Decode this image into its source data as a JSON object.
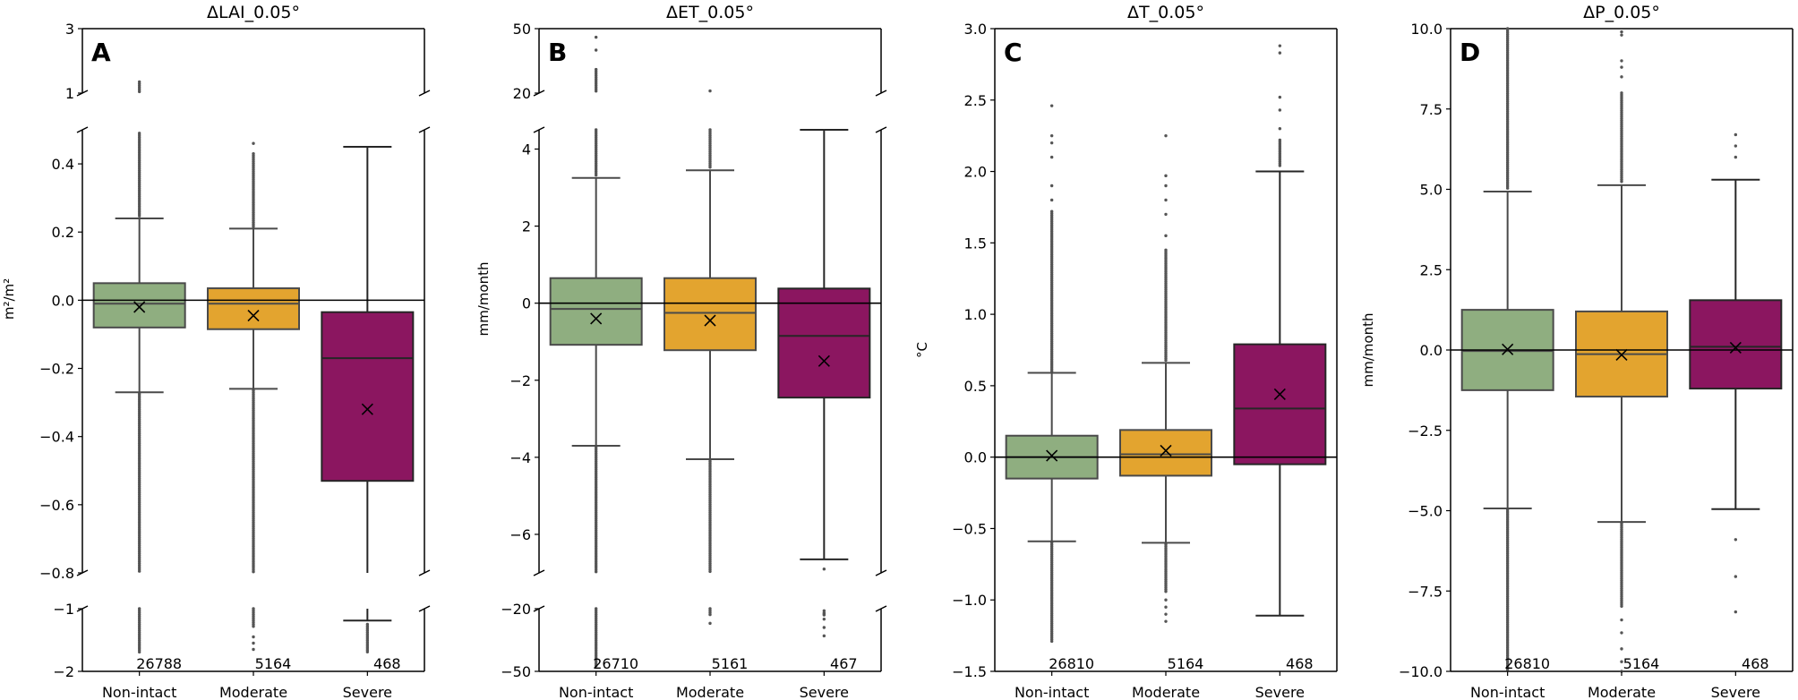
{
  "chart_data": [
    {
      "type": "box",
      "panel": "A",
      "title": "ΔLAI_0.05°",
      "ylabel": "m²/m²",
      "broken_axis": true,
      "segments": [
        [
          3,
          1
        ],
        [
          0.5,
          -0.8
        ],
        [
          -1,
          -2
        ]
      ],
      "yticks": [
        {
          "v": 3,
          "label": "3"
        },
        {
          "v": 1,
          "label": "1"
        },
        {
          "v": 0.4,
          "label": "0.4"
        },
        {
          "v": 0.2,
          "label": "0.2"
        },
        {
          "v": 0,
          "label": "0.0"
        },
        {
          "v": -0.2,
          "label": "−0.2"
        },
        {
          "v": -0.4,
          "label": "−0.4"
        },
        {
          "v": -0.6,
          "label": "−0.6"
        },
        {
          "v": -0.8,
          "label": "−0.8"
        },
        {
          "v": -1,
          "label": "−1"
        },
        {
          "v": -2,
          "label": "−2"
        }
      ],
      "categories": [
        "Non-intact",
        "Moderate",
        "Severe"
      ],
      "boxes": [
        {
          "n": "26788",
          "q1": -0.08,
          "median": -0.01,
          "q3": 0.05,
          "mean": -0.02,
          "whisker_low": -0.27,
          "whisker_high": 0.24,
          "outlier_ranges": [
            [
              0.245,
              0.49
            ],
            [
              1.02,
              1.35
            ],
            [
              -0.8,
              -0.275
            ],
            [
              -1.7,
              -1.0
            ]
          ],
          "outliers": []
        },
        {
          "n": "5164",
          "q1": -0.085,
          "median": -0.01,
          "q3": 0.035,
          "mean": -0.045,
          "whisker_low": -0.26,
          "whisker_high": 0.21,
          "outlier_ranges": [
            [
              0.215,
              0.43
            ],
            [
              -0.8,
              -0.265
            ],
            [
              -1.3,
              -1.0
            ]
          ],
          "outliers": [
            0.46,
            -1.45,
            -1.55,
            -1.65
          ]
        },
        {
          "n": "468",
          "q1": -0.53,
          "median": -0.17,
          "q3": -0.035,
          "mean": -0.32,
          "whisker_low": -1.19,
          "whisker_high": 0.45,
          "outlier_ranges": [
            [
              -1.7,
              -1.25
            ]
          ],
          "outliers": []
        }
      ]
    },
    {
      "type": "box",
      "panel": "B",
      "title": "ΔET_0.05°",
      "ylabel": "mm/month",
      "broken_axis": true,
      "segments": [
        [
          50,
          20
        ],
        [
          4.5,
          -7
        ],
        [
          -20,
          -50
        ]
      ],
      "yticks": [
        {
          "v": 50,
          "label": "50"
        },
        {
          "v": 20,
          "label": "20"
        },
        {
          "v": 4,
          "label": "4"
        },
        {
          "v": 2,
          "label": "2"
        },
        {
          "v": 0,
          "label": "0"
        },
        {
          "v": -2,
          "label": "−2"
        },
        {
          "v": -4,
          "label": "−4"
        },
        {
          "v": -6,
          "label": "−6"
        },
        {
          "v": -20,
          "label": "−20"
        },
        {
          "v": -50,
          "label": "−50"
        }
      ],
      "categories": [
        "Non-intact",
        "Moderate",
        "Severe"
      ],
      "boxes": [
        {
          "n": "26710",
          "q1": -1.08,
          "median": -0.15,
          "q3": 0.65,
          "mean": -0.4,
          "whisker_low": -3.7,
          "whisker_high": 3.25,
          "outlier_ranges": [
            [
              3.3,
              4.5
            ],
            [
              -7,
              -3.75
            ],
            [
              20,
              31
            ],
            [
              -48,
              -20
            ]
          ],
          "outliers": [
            40,
            46
          ]
        },
        {
          "n": "5161",
          "q1": -1.22,
          "median": -0.25,
          "q3": 0.65,
          "mean": -0.45,
          "whisker_low": -4.05,
          "whisker_high": 3.45,
          "outlier_ranges": [
            [
              3.5,
              4.5
            ],
            [
              -7,
              -4.1
            ],
            [
              -23,
              -20
            ]
          ],
          "outliers": [
            21,
            -27
          ]
        },
        {
          "n": "467",
          "q1": -2.45,
          "median": -0.85,
          "q3": 0.38,
          "mean": -1.5,
          "whisker_low": -6.65,
          "whisker_high": 4.5,
          "outlier_ranges": [],
          "outliers": [
            -6.9,
            -21,
            -22,
            -22.5,
            -23,
            -25,
            -29,
            -33
          ]
        }
      ]
    },
    {
      "type": "box",
      "panel": "C",
      "title": "ΔT_0.05°",
      "ylabel": "°C",
      "broken_axis": false,
      "segments": [
        [
          3.0,
          -1.5
        ]
      ],
      "yticks": [
        {
          "v": 3,
          "label": "3.0"
        },
        {
          "v": 2.5,
          "label": "2.5"
        },
        {
          "v": 2,
          "label": "2.0"
        },
        {
          "v": 1.5,
          "label": "1.5"
        },
        {
          "v": 1,
          "label": "1.0"
        },
        {
          "v": 0.5,
          "label": "0.5"
        },
        {
          "v": 0,
          "label": "0.0"
        },
        {
          "v": -0.5,
          "label": "−0.5"
        },
        {
          "v": -1,
          "label": "−1.0"
        },
        {
          "v": -1.5,
          "label": "−1.5"
        }
      ],
      "categories": [
        "Non-intact",
        "Moderate",
        "Severe"
      ],
      "boxes": [
        {
          "n": "26810",
          "q1": -0.15,
          "median": 0.0,
          "q3": 0.15,
          "mean": 0.01,
          "whisker_low": -0.59,
          "whisker_high": 0.59,
          "outlier_ranges": [
            [
              0.6,
              1.72
            ],
            [
              -1.3,
              -0.6
            ]
          ],
          "outliers": [
            1.8,
            1.9,
            2.1,
            2.2,
            2.25,
            2.46
          ]
        },
        {
          "n": "5164",
          "q1": -0.13,
          "median": 0.02,
          "q3": 0.19,
          "mean": 0.045,
          "whisker_low": -0.6,
          "whisker_high": 0.66,
          "outlier_ranges": [
            [
              0.67,
              1.45
            ],
            [
              -0.95,
              -0.61
            ]
          ],
          "outliers": [
            1.55,
            1.7,
            1.8,
            1.9,
            1.97,
            2.25,
            -1.0,
            -1.05,
            -1.1,
            -1.15
          ]
        },
        {
          "n": "468",
          "q1": -0.05,
          "median": 0.34,
          "q3": 0.79,
          "mean": 0.44,
          "whisker_low": -1.11,
          "whisker_high": 2.0,
          "outlier_ranges": [
            [
              2.03,
              2.22
            ]
          ],
          "outliers": [
            2.3,
            2.43,
            2.52,
            2.83,
            2.88
          ]
        }
      ]
    },
    {
      "type": "box",
      "panel": "D",
      "title": "ΔP_0.05°",
      "ylabel": "mm/month",
      "broken_axis": false,
      "segments": [
        [
          10,
          -10
        ]
      ],
      "yticks": [
        {
          "v": 10,
          "label": "10.0"
        },
        {
          "v": 7.5,
          "label": "7.5"
        },
        {
          "v": 5,
          "label": "5.0"
        },
        {
          "v": 2.5,
          "label": "2.5"
        },
        {
          "v": 0,
          "label": "0.0"
        },
        {
          "v": -2.5,
          "label": "−2.5"
        },
        {
          "v": -5,
          "label": "−5.0"
        },
        {
          "v": -7.5,
          "label": "−7.5"
        },
        {
          "v": -10,
          "label": "−10.0"
        }
      ],
      "categories": [
        "Non-intact",
        "Moderate",
        "Severe"
      ],
      "boxes": [
        {
          "n": "26810",
          "q1": -1.25,
          "median": -0.03,
          "q3": 1.25,
          "mean": 0.02,
          "whisker_low": -4.93,
          "whisker_high": 4.93,
          "outlier_ranges": [
            [
              4.98,
              10
            ],
            [
              -10,
              -4.98
            ]
          ],
          "outliers": []
        },
        {
          "n": "5164",
          "q1": -1.45,
          "median": -0.13,
          "q3": 1.2,
          "mean": -0.15,
          "whisker_low": -5.35,
          "whisker_high": 5.13,
          "outlier_ranges": [
            [
              5.2,
              8.0
            ],
            [
              -8.0,
              -5.4
            ]
          ],
          "outliers": [
            8.5,
            8.8,
            9.0,
            9.8,
            9.9,
            -8.4,
            -8.8,
            -9.3,
            -9.7,
            -10
          ]
        },
        {
          "n": "468",
          "q1": -1.2,
          "median": 0.1,
          "q3": 1.55,
          "mean": 0.07,
          "whisker_low": -4.95,
          "whisker_high": 5.3,
          "outlier_ranges": [],
          "outliers": [
            6.0,
            6.35,
            6.7,
            -5.9,
            -7.05,
            -8.15
          ]
        }
      ]
    }
  ],
  "colors": {
    "Non-intact": "#8FAE80",
    "Moderate": "#E3A42F",
    "Severe": "#8B1660",
    "edge": "#4a4a4a",
    "edge_severe": "#262626",
    "outlier": "#555555"
  }
}
